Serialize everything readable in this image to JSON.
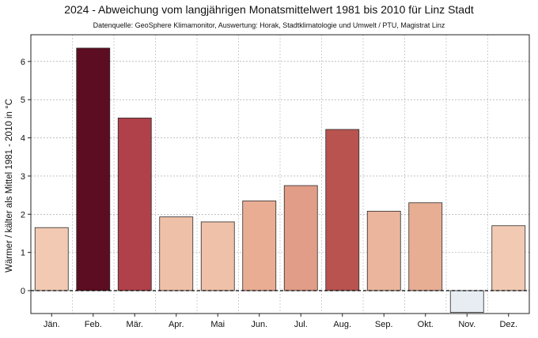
{
  "chart_data": {
    "type": "bar",
    "title": "2024 - Abweichung vom langjährigen Monatsmittelwert 1981 bis 2010 für Linz Stadt",
    "subtitle": "Datenquelle: GeoSphere Klimamonitor, Auswertung: Horak, Stadtklimatologie und Umwelt / PTU, Magistrat Linz",
    "xlabel": "",
    "ylabel": "Wärmer / kälter als Mittel 1981 - 2010 in °C",
    "categories": [
      "Jän.",
      "Feb.",
      "Mär.",
      "Apr.",
      "Mai",
      "Jun.",
      "Jul.",
      "Aug.",
      "Sep.",
      "Okt.",
      "Nov.",
      "Dez."
    ],
    "values": [
      1.65,
      6.35,
      4.52,
      1.93,
      1.8,
      2.35,
      2.75,
      4.22,
      2.08,
      2.3,
      -0.57,
      1.7
    ],
    "bar_colors": [
      "#f2cab3",
      "#5d0d21",
      "#b0404a",
      "#efc0a8",
      "#efc1a9",
      "#e9ad94",
      "#e19d87",
      "#b8534f",
      "#ebb59d",
      "#e7ae94",
      "#e7edf3",
      "#f2cab4"
    ],
    "ylim": [
      -0.6,
      6.7
    ],
    "yticks": [
      0,
      1,
      2,
      3,
      4,
      5,
      6
    ],
    "zero_line": "dashed",
    "grid": true,
    "legend": "none"
  }
}
